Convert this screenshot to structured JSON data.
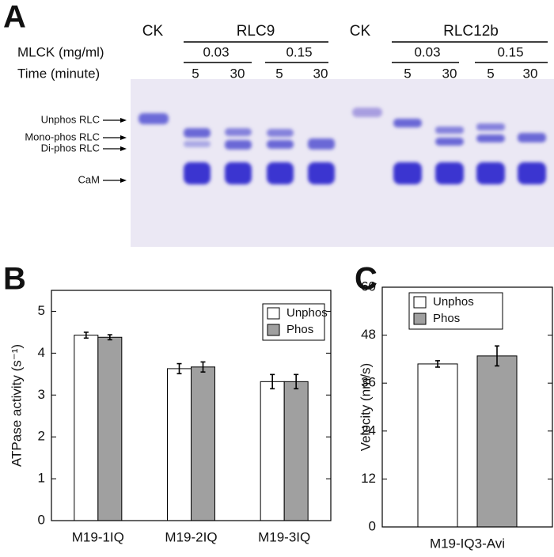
{
  "gel": {
    "panel_label": "A",
    "ck_1": "CK",
    "group_1": "RLC9",
    "ck_2": "CK",
    "group_2": "RLC12b",
    "mlck_label": "MLCK (mg/ml)",
    "mlck_levels": [
      "0.03",
      "0.15",
      "0.03",
      "0.15"
    ],
    "time_label": "Time (minute)",
    "times": [
      "5",
      "30",
      "5",
      "30",
      "5",
      "30",
      "5",
      "30"
    ],
    "band_labels": [
      "Unphos RLC",
      "Mono-phos RLC",
      "Di-phos RLC",
      "CaM"
    ]
  },
  "chart_data": [
    {
      "type": "bar",
      "panel_label": "B",
      "ylabel": "ATPase activity (s⁻¹)",
      "categories": [
        "M19-1IQ",
        "M19-2IQ",
        "M19-3IQ"
      ],
      "series": [
        {
          "name": "Unphos",
          "color": "#ffffff",
          "values": [
            4.43,
            3.63,
            3.32
          ],
          "errors": [
            0.07,
            0.12,
            0.17
          ]
        },
        {
          "name": "Phos",
          "color": "#a0a0a0",
          "values": [
            4.38,
            3.67,
            3.32
          ],
          "errors": [
            0.06,
            0.12,
            0.17
          ]
        }
      ],
      "ylim": [
        0,
        5.5
      ],
      "yticks": [
        0,
        1,
        2,
        3,
        4,
        5
      ],
      "legend": "upper right"
    },
    {
      "type": "bar",
      "panel_label": "C",
      "ylabel": "Velocity (nm/s)",
      "categories": [
        "M19-IQ3-Avi"
      ],
      "series": [
        {
          "name": "Unphos",
          "color": "#ffffff",
          "values": [
            40.8
          ],
          "errors": [
            0.8
          ]
        },
        {
          "name": "Phos",
          "color": "#a0a0a0",
          "values": [
            42.8
          ],
          "errors": [
            2.5
          ]
        }
      ],
      "ylim": [
        0,
        60
      ],
      "yticks": [
        0,
        12,
        24,
        36,
        48,
        60
      ],
      "legend": "upper left"
    }
  ]
}
